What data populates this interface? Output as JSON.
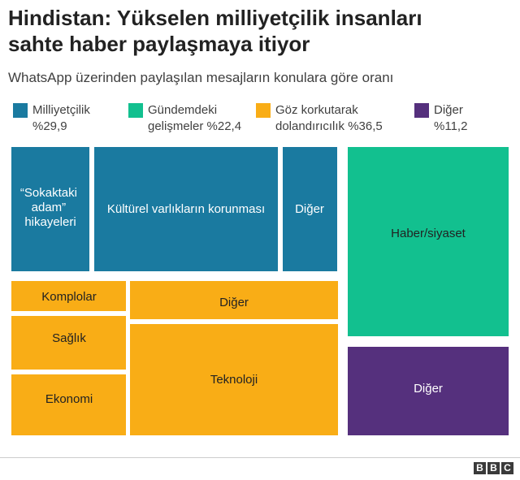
{
  "title_line1": "Hindistan: Yükselen milliyetçilik insanları",
  "title_line2": "sahte haber paylaşmaya itiyor",
  "subtitle": "WhatsApp üzerinden paylaşılan mesajların konulara göre oranı",
  "legend": [
    {
      "line1": "Milliyetçilik",
      "line2": "%29,9",
      "color": "#1a7aa0"
    },
    {
      "line1": "Gündemdeki",
      "line2": "gelişmeler %22,4",
      "color": "#12c08f"
    },
    {
      "line1": "Göz korkutarak",
      "line2": "dolandırıcılık %36,5",
      "color": "#f9ad16"
    },
    {
      "line1": "Diğer",
      "line2": "%11,2",
      "color": "#55307d"
    }
  ],
  "chart_data": {
    "type": "treemap",
    "groups": [
      {
        "name": "Milliyetçilik",
        "value": 29.9,
        "color": "#1a7aa0",
        "items": [
          {
            "label": "“Sokaktaki adam” hikayeleri"
          },
          {
            "label": "Kültürel varlıkların korunması"
          },
          {
            "label": "Diğer"
          }
        ]
      },
      {
        "name": "Gündemdeki gelişmeler",
        "value": 22.4,
        "color": "#12c08f",
        "items": [
          {
            "label": "Haber/siyaset"
          }
        ]
      },
      {
        "name": "Göz korkutarak dolandırıcılık",
        "value": 36.5,
        "color": "#f9ad16",
        "items": [
          {
            "label": "Komplolar"
          },
          {
            "label": "Sağlık"
          },
          {
            "label": "Ekonomi"
          },
          {
            "label": "Diğer"
          },
          {
            "label": "Teknoloji"
          }
        ]
      },
      {
        "name": "Diğer",
        "value": 11.2,
        "color": "#55307d",
        "items": [
          {
            "label": "Diğer"
          }
        ]
      }
    ]
  },
  "logo": [
    "B",
    "B",
    "C"
  ]
}
